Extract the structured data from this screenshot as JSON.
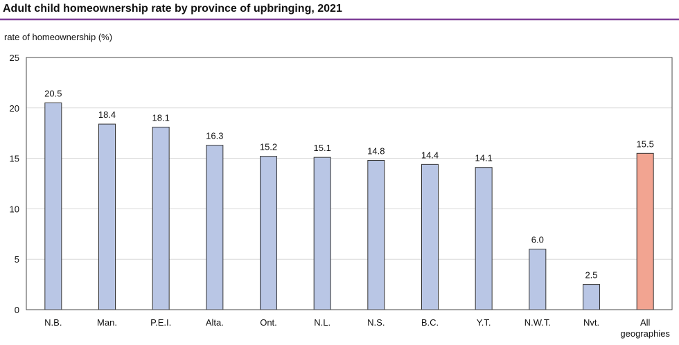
{
  "chart_data": {
    "type": "bar",
    "title": "Adult child homeownership rate by province of upbringing, 2021",
    "ylabel": "rate of homeownership (%)",
    "xlabel": "",
    "categories": [
      "N.B.",
      "Man.",
      "P.E.I.",
      "Alta.",
      "Ont.",
      "N.L.",
      "N.S.",
      "B.C.",
      "Y.T.",
      "N.W.T.",
      "Nvt.",
      "All geographies"
    ],
    "values": [
      20.5,
      18.4,
      18.1,
      16.3,
      15.2,
      15.1,
      14.8,
      14.4,
      14.1,
      6.0,
      2.5,
      15.5
    ],
    "ylim": [
      0,
      25
    ],
    "yticks": [
      0,
      5,
      10,
      15,
      20,
      25
    ],
    "grid": true,
    "legend": "none",
    "colors": {
      "bar": "#b9c6e5",
      "highlight": "#f2a491",
      "highlight_category": "All geographies",
      "title_rule": "#7e3f98"
    }
  }
}
